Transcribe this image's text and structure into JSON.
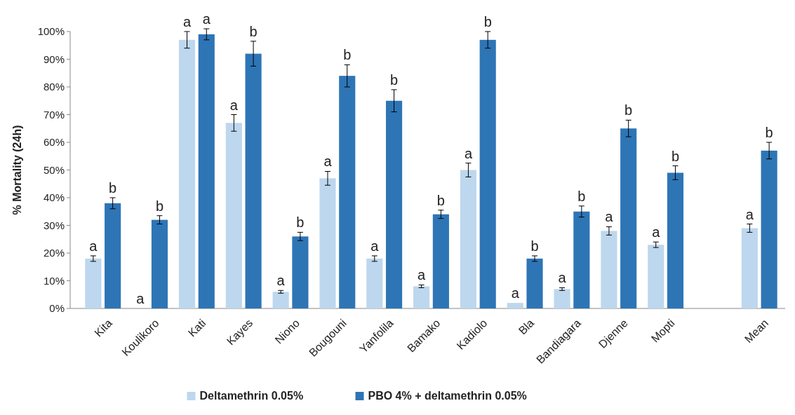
{
  "chart_data": {
    "type": "bar",
    "ylabel": "% Mortality (24h)",
    "categories": [
      "Kita",
      "Koulikoro",
      "Kati",
      "Kayes",
      "Niono",
      "Bougouni",
      "Yanfolila",
      "Bamako",
      "Kadiolo",
      "Bla",
      "Bandiagara",
      "Djenne",
      "Mopti",
      null,
      "Mean"
    ],
    "series": [
      {
        "name": "Deltamethrin 0.05%",
        "color": "#bdd7ee",
        "values": [
          18,
          0,
          97,
          67,
          6,
          47,
          18,
          8,
          50,
          2,
          7,
          28,
          23,
          null,
          29
        ],
        "errors": [
          1,
          null,
          3,
          3,
          0.5,
          2.5,
          1,
          0.5,
          2.5,
          null,
          0.5,
          1.5,
          1,
          null,
          1.5
        ],
        "value_labels": [
          "a",
          "a",
          "a",
          "a",
          "a",
          "a",
          "a",
          "a",
          "a",
          "a",
          "a",
          "a",
          "a",
          null,
          "a"
        ]
      },
      {
        "name": "PBO 4% + deltamethrin 0.05%",
        "color": "#2e75b6",
        "values": [
          38,
          32,
          99,
          92,
          26,
          84,
          75,
          34,
          97,
          18,
          35,
          65,
          49,
          null,
          57
        ],
        "errors": [
          2,
          1.5,
          2,
          4.5,
          1.5,
          4,
          4,
          1.5,
          3,
          1,
          2,
          3,
          2.5,
          null,
          3
        ],
        "value_labels": [
          "b",
          "b",
          "a",
          "b",
          "b",
          "b",
          "b",
          "b",
          "b",
          "b",
          "b",
          "b",
          "b",
          null,
          "b"
        ]
      }
    ],
    "ylim": [
      0,
      100
    ],
    "yticks": [
      {
        "value": 0,
        "label": "0%"
      },
      {
        "value": 10,
        "label": "10%"
      },
      {
        "value": 20,
        "label": "20%"
      },
      {
        "value": 30,
        "label": "30%"
      },
      {
        "value": 40,
        "label": "40%"
      },
      {
        "value": 50,
        "label": "50%"
      },
      {
        "value": 60,
        "label": "60%"
      },
      {
        "value": 70,
        "label": "70%"
      },
      {
        "value": 80,
        "label": "80%"
      },
      {
        "value": 90,
        "label": "90%"
      },
      {
        "value": 100,
        "label": "100%"
      }
    ],
    "legend": "bottom"
  }
}
